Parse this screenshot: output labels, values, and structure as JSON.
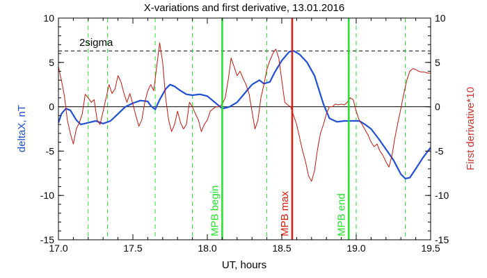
{
  "chart_data": {
    "type": "line",
    "title": "X-variations and first derivative, 13.01.2016",
    "xlabel": "UT, hours",
    "ylabel_left": "deltaX, nT",
    "ylabel_right": "First derivative*10",
    "xlim": [
      17.0,
      19.5
    ],
    "ylim": [
      -15,
      10
    ],
    "ylim_right": [
      -15,
      10
    ],
    "x_ticks": [
      17.0,
      17.5,
      18.0,
      18.5,
      19.0,
      19.5
    ],
    "x_tick_labels": [
      "17.0",
      "17.5",
      "18.0",
      "18.5",
      "19.0",
      "19.5"
    ],
    "y_ticks": [
      10,
      5,
      0,
      -5,
      -10,
      -15
    ],
    "y_tick_labels": [
      "10",
      "5",
      "0",
      "-5",
      "-10",
      "-15"
    ],
    "y_ticks_right": [
      10,
      5,
      0,
      -5,
      -10,
      -15
    ],
    "y_tick_labels_right": [
      "10",
      "5",
      "0",
      "-5",
      "-10",
      "-15"
    ],
    "colors": {
      "deltaX": "#1f4fd6",
      "derivative": "#c8140a",
      "green_lines": "#22e22a",
      "mpb_max": "#e01b0b",
      "axis": "#000000"
    },
    "sigma_level": 6.3,
    "sigma_label": "2sigma",
    "zero_line": 0,
    "dashed_green_lines_x": [
      17.2,
      17.33,
      17.65,
      17.9,
      18.4,
      19.0,
      19.33
    ],
    "markers": [
      {
        "x": 18.1,
        "label": "MPB begin",
        "color": "#22e22a"
      },
      {
        "x": 18.57,
        "label": "MPB max",
        "color": "#e01b0b"
      },
      {
        "x": 18.95,
        "label": "MPB end",
        "color": "#22e22a"
      }
    ],
    "series": [
      {
        "axis": "left",
        "color": "#1f4fd6",
        "x": [
          17.0,
          17.02,
          17.05,
          17.08,
          17.12,
          17.15,
          17.2,
          17.25,
          17.3,
          17.35,
          17.4,
          17.45,
          17.5,
          17.55,
          17.6,
          17.62,
          17.65,
          17.68,
          17.72,
          17.75,
          17.78,
          17.82,
          17.86,
          17.9,
          17.95,
          18.0,
          18.05,
          18.1,
          18.13,
          18.15,
          18.2,
          18.25,
          18.3,
          18.35,
          18.38,
          18.42,
          18.45,
          18.5,
          18.55,
          18.58,
          18.62,
          18.67,
          18.72,
          18.78,
          18.82,
          18.87,
          18.92,
          18.97,
          19.02,
          19.06,
          19.1,
          19.15,
          19.2,
          19.25,
          19.3,
          19.33,
          19.36,
          19.4,
          19.45,
          19.5
        ],
        "values": [
          -1.8,
          -0.8,
          -0.2,
          -0.4,
          -1.5,
          -2.0,
          -1.8,
          -1.6,
          -1.9,
          -1.6,
          -0.8,
          0.0,
          0.4,
          0.7,
          0.6,
          0.1,
          -0.3,
          0.8,
          2.0,
          2.5,
          2.3,
          1.8,
          1.4,
          1.3,
          1.4,
          1.2,
          0.5,
          -0.2,
          -0.1,
          0.0,
          0.5,
          1.5,
          2.5,
          3.0,
          2.6,
          2.8,
          3.8,
          5.2,
          6.2,
          6.3,
          5.9,
          5.0,
          3.5,
          0.3,
          -1.3,
          -1.7,
          -1.6,
          -1.6,
          -1.6,
          -2.0,
          -2.5,
          -3.6,
          -4.8,
          -6.0,
          -7.6,
          -8.1,
          -8.0,
          -7.0,
          -5.7,
          -4.6
        ]
      },
      {
        "axis": "right",
        "color": "#c8140a",
        "x": [
          17.0,
          17.02,
          17.04,
          17.06,
          17.08,
          17.1,
          17.12,
          17.14,
          17.16,
          17.18,
          17.2,
          17.22,
          17.24,
          17.26,
          17.28,
          17.3,
          17.32,
          17.34,
          17.36,
          17.38,
          17.4,
          17.42,
          17.44,
          17.46,
          17.48,
          17.5,
          17.52,
          17.54,
          17.56,
          17.58,
          17.6,
          17.62,
          17.64,
          17.66,
          17.68,
          17.7,
          17.72,
          17.74,
          17.76,
          17.78,
          17.8,
          17.82,
          17.84,
          17.86,
          17.88,
          17.9,
          17.92,
          17.94,
          17.96,
          17.98,
          18.0,
          18.02,
          18.04,
          18.06,
          18.08,
          18.1,
          18.12,
          18.14,
          18.16,
          18.18,
          18.2,
          18.22,
          18.24,
          18.26,
          18.28,
          18.3,
          18.32,
          18.34,
          18.36,
          18.38,
          18.4,
          18.42,
          18.44,
          18.46,
          18.48,
          18.5,
          18.52,
          18.54,
          18.56,
          18.58,
          18.6,
          18.62,
          18.64,
          18.66,
          18.68,
          18.7,
          18.72,
          18.74,
          18.76,
          18.78,
          18.8,
          18.82,
          18.84,
          18.86,
          18.88,
          18.9,
          18.92,
          18.94,
          18.96,
          18.98,
          19.0,
          19.02,
          19.04,
          19.06,
          19.08,
          19.1,
          19.12,
          19.14,
          19.16,
          19.18,
          19.2,
          19.22,
          19.24,
          19.26,
          19.28,
          19.3,
          19.32,
          19.34,
          19.36,
          19.38,
          19.4,
          19.42,
          19.44,
          19.46,
          19.48,
          19.5
        ],
        "values": [
          4.5,
          3.0,
          1.2,
          -1.5,
          -3.0,
          -4.2,
          -2.5,
          -1.8,
          -0.8,
          1.4,
          1.0,
          0.5,
          0.8,
          -1.5,
          -2.0,
          -0.5,
          1.0,
          2.5,
          1.5,
          2.0,
          3.5,
          2.8,
          1.5,
          0.5,
          1.5,
          0.3,
          -1.0,
          -2.2,
          -1.5,
          0.5,
          1.8,
          2.5,
          1.8,
          4.5,
          7.2,
          5.0,
          1.0,
          -1.5,
          -2.8,
          -2.0,
          -0.5,
          -1.8,
          -2.5,
          -2.0,
          0.5,
          0.0,
          -0.8,
          -1.5,
          -2.8,
          -2.0,
          -1.5,
          -0.5,
          -0.2,
          0.0,
          0.0,
          0.3,
          1.0,
          3.0,
          5.5,
          4.5,
          3.5,
          4.0,
          3.2,
          2.5,
          1.5,
          -0.5,
          -2.5,
          -1.5,
          1.0,
          2.5,
          4.2,
          5.2,
          6.0,
          6.5,
          5.5,
          3.0,
          0.5,
          0.2,
          0.0,
          -1.0,
          -2.0,
          -3.5,
          -5.0,
          -6.2,
          -7.8,
          -8.4,
          -7.2,
          -4.8,
          -3.0,
          -2.0,
          -0.8,
          0.0,
          0.0,
          0.3,
          0.2,
          0.3,
          0.2,
          0.5,
          1.0,
          0.8,
          -0.5,
          -1.5,
          -2.0,
          -2.6,
          -3.2,
          -4.0,
          -4.5,
          -4.2,
          -5.0,
          -5.5,
          -6.2,
          -6.8,
          -5.5,
          -3.5,
          -1.8,
          -0.2,
          1.5,
          3.0,
          4.0,
          4.3,
          4.2,
          4.0,
          3.9,
          3.9,
          3.8,
          3.8
        ]
      }
    ]
  }
}
